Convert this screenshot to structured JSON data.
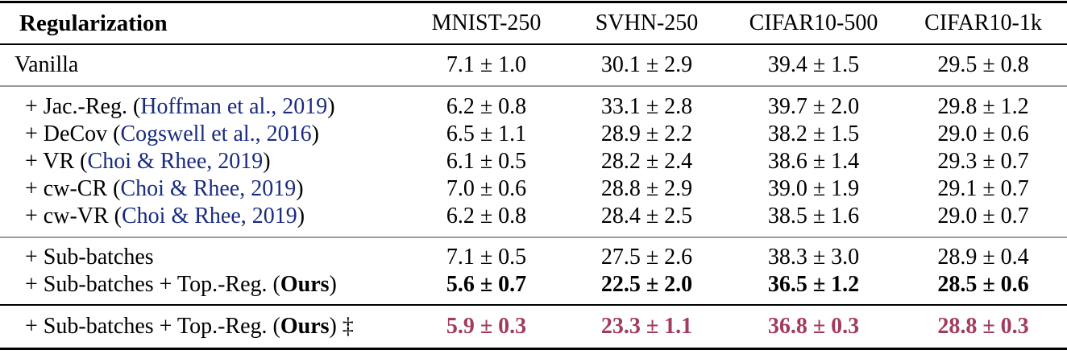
{
  "colors": {
    "citation_blue": "#1a2b80",
    "highlight_maroon": "#a23b5e",
    "rule_dark": "#000000",
    "rule_light": "#999999"
  },
  "table": {
    "header": {
      "label": "Regularization",
      "columns": [
        "MNIST-250",
        "SVHN-250",
        "CIFAR10-500",
        "CIFAR10-1k"
      ]
    },
    "sections": {
      "vanilla": {
        "rows": [
          {
            "label_parts": [
              {
                "text": "Vanilla",
                "style": "plain"
              }
            ],
            "values": [
              "7.1 ± 1.0",
              "30.1 ± 2.9",
              "39.4 ± 1.5",
              "29.5 ± 0.8"
            ],
            "value_style": "plain",
            "indent": false
          }
        ]
      },
      "baselines": {
        "rows": [
          {
            "label_parts": [
              {
                "text": "+ Jac.-Reg. (",
                "style": "plain"
              },
              {
                "text": "Hoffman et al., 2019",
                "style": "cite"
              },
              {
                "text": ")",
                "style": "plain"
              }
            ],
            "values": [
              "6.2 ± 0.8",
              "33.1 ± 2.8",
              "39.7 ± 2.0",
              "29.8 ± 1.2"
            ],
            "value_style": "plain",
            "indent": true
          },
          {
            "label_parts": [
              {
                "text": "+ DeCov (",
                "style": "plain"
              },
              {
                "text": "Cogswell et al., 2016",
                "style": "cite"
              },
              {
                "text": ")",
                "style": "plain"
              }
            ],
            "values": [
              "6.5 ± 1.1",
              "28.9 ± 2.2",
              "38.2 ± 1.5",
              "29.0 ± 0.6"
            ],
            "value_style": "plain",
            "indent": true
          },
          {
            "label_parts": [
              {
                "text": "+ VR (",
                "style": "plain"
              },
              {
                "text": "Choi & Rhee, 2019",
                "style": "cite"
              },
              {
                "text": ")",
                "style": "plain"
              }
            ],
            "values": [
              "6.1 ± 0.5",
              "28.2 ± 2.4",
              "38.6 ± 1.4",
              "29.3 ± 0.7"
            ],
            "value_style": "plain",
            "indent": true
          },
          {
            "label_parts": [
              {
                "text": "+ cw-CR (",
                "style": "plain"
              },
              {
                "text": "Choi & Rhee, 2019",
                "style": "cite"
              },
              {
                "text": ")",
                "style": "plain"
              }
            ],
            "values": [
              "7.0 ± 0.6",
              "28.8 ± 2.9",
              "39.0 ± 1.9",
              "29.1 ± 0.7"
            ],
            "value_style": "plain",
            "indent": true
          },
          {
            "label_parts": [
              {
                "text": "+ cw-VR (",
                "style": "plain"
              },
              {
                "text": "Choi & Rhee, 2019",
                "style": "cite"
              },
              {
                "text": ")",
                "style": "plain"
              }
            ],
            "values": [
              "6.2 ± 0.8",
              "28.4 ± 2.5",
              "38.5 ± 1.6",
              "29.0 ± 0.7"
            ],
            "value_style": "plain",
            "indent": true
          }
        ]
      },
      "ours_dev": {
        "rows": [
          {
            "label_parts": [
              {
                "text": "+ Sub-batches",
                "style": "plain"
              }
            ],
            "values": [
              "7.1 ± 0.5",
              "27.5 ± 2.6",
              "38.3 ± 3.0",
              "28.9 ± 0.4"
            ],
            "value_style": "plain",
            "indent": true
          },
          {
            "label_parts": [
              {
                "text": "+ Sub-batches + Top.-Reg. (",
                "style": "plain"
              },
              {
                "text": "Ours",
                "style": "bold"
              },
              {
                "text": ")",
                "style": "plain"
              }
            ],
            "values": [
              "5.6 ± 0.7",
              "22.5 ± 2.0",
              "36.5 ± 1.2",
              "28.5 ± 0.6"
            ],
            "value_style": "bold",
            "indent": true
          }
        ]
      },
      "ours_test": {
        "rows": [
          {
            "label_parts": [
              {
                "text": "+ Sub-batches + Top.-Reg. (",
                "style": "plain"
              },
              {
                "text": "Ours",
                "style": "bold"
              },
              {
                "text": ") ‡",
                "style": "plain"
              }
            ],
            "values": [
              "5.9 ± 0.3",
              "23.3 ± 1.1",
              "36.8 ± 0.3",
              "28.8 ± 0.3"
            ],
            "value_style": "bold_highlight",
            "indent": true
          }
        ]
      }
    }
  }
}
